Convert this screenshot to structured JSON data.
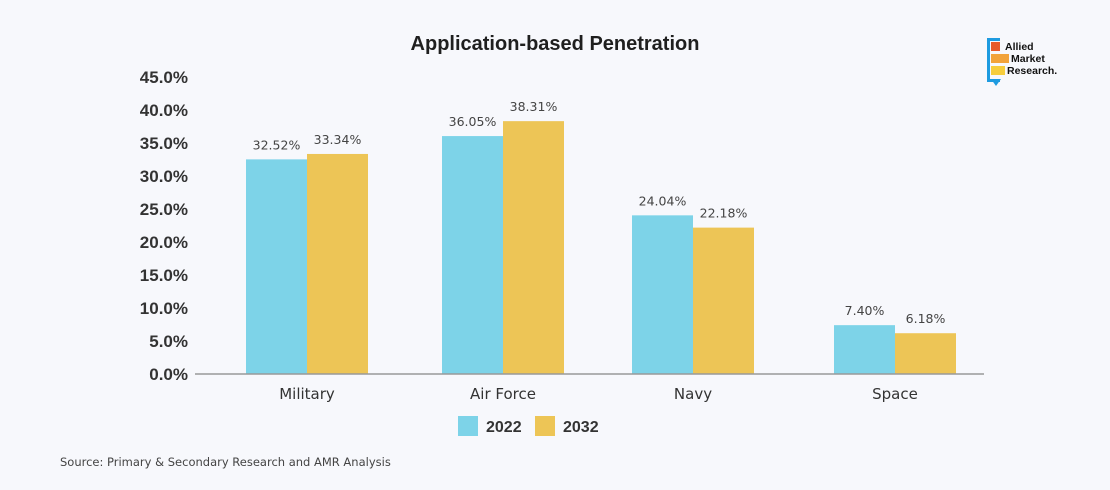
{
  "chart_data": {
    "type": "bar",
    "title": "Application-based Penetration",
    "categories": [
      "Military",
      "Air Force",
      "Navy",
      "Space"
    ],
    "series": [
      {
        "name": "2022",
        "color": "#7dd3e8",
        "values": [
          32.52,
          36.05,
          24.04,
          7.4
        ],
        "labels": [
          "32.52%",
          "36.05%",
          "24.04%",
          "7.40%"
        ]
      },
      {
        "name": "2032",
        "color": "#edc556",
        "values": [
          33.34,
          38.31,
          22.18,
          6.18
        ],
        "labels": [
          "33.34%",
          "38.31%",
          "22.18%",
          "6.18%"
        ]
      }
    ],
    "ylim": [
      0,
      45
    ],
    "yticks": [
      "0.0%",
      "5.0%",
      "10.0%",
      "15.0%",
      "20.0%",
      "25.0%",
      "30.0%",
      "35.0%",
      "40.0%",
      "45.0%"
    ],
    "xlabel": "",
    "ylabel": "",
    "grid": false,
    "legend_position": "bottom-center"
  },
  "source": "Source: Primary & Secondary Research and AMR Analysis",
  "logo": {
    "lines": [
      "Allied",
      "Market",
      "Research."
    ],
    "colors": [
      "#e85b2a",
      "#f2a33a",
      "#f6cd3d",
      "#1e9be0"
    ]
  }
}
